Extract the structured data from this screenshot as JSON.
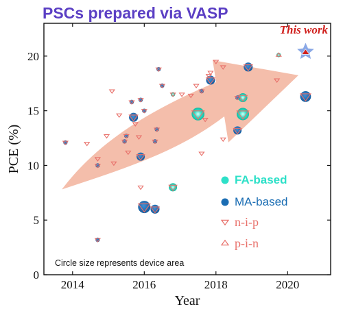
{
  "chart_data": {
    "type": "scatter",
    "title": "PSCs prepared via VASP",
    "xlabel": "Year",
    "ylabel": "PCE (%)",
    "xlim": [
      2013.2,
      2021.2
    ],
    "ylim": [
      0,
      23
    ],
    "x_ticks": [
      2014,
      2016,
      2018,
      2020
    ],
    "y_ticks": [
      0,
      5,
      10,
      15,
      20
    ],
    "grid": false,
    "legend": {
      "placement": "bottom-right",
      "entries": [
        {
          "label": "FA-based",
          "color": "#2de0c8"
        },
        {
          "label": "MA-based",
          "color": "#1a6db3"
        },
        {
          "label": "n-i-p",
          "color": "#e8706a"
        },
        {
          "label": "p-i-n",
          "color": "#e8706a"
        }
      ]
    },
    "annotation_note": "Circle size represents device area",
    "callout": {
      "label": "This work",
      "x": 2020.5,
      "y": 20.4
    },
    "trend_arrow": {
      "from": [
        2013.7,
        7.8
      ],
      "to": [
        2020.3,
        21.5
      ],
      "color": "#f2b39c"
    },
    "colors": {
      "fa": "#2de0c8",
      "ma": "#1a6db3",
      "marker_outline": "#e8706a",
      "star": "#8aa8e6",
      "this_work": "#d0201d"
    },
    "points": [
      {
        "x": 2013.8,
        "y": 12.1,
        "comp": "MA",
        "arch": "nip",
        "size": 1
      },
      {
        "x": 2014.4,
        "y": 12.0,
        "comp": "none",
        "arch": "nip",
        "size": 1
      },
      {
        "x": 2014.7,
        "y": 10.6,
        "comp": "none",
        "arch": "nip",
        "size": 1
      },
      {
        "x": 2014.7,
        "y": 10.0,
        "comp": "MA",
        "arch": "nip",
        "size": 1
      },
      {
        "x": 2014.7,
        "y": 3.2,
        "comp": "MA",
        "arch": "nip",
        "size": 1
      },
      {
        "x": 2014.95,
        "y": 12.7,
        "comp": "none",
        "arch": "nip",
        "size": 1
      },
      {
        "x": 2015.1,
        "y": 16.8,
        "comp": "none",
        "arch": "nip",
        "size": 1
      },
      {
        "x": 2015.15,
        "y": 10.2,
        "comp": "none",
        "arch": "nip",
        "size": 1
      },
      {
        "x": 2015.3,
        "y": 14.6,
        "comp": "none",
        "arch": "nip",
        "size": 1
      },
      {
        "x": 2015.45,
        "y": 12.2,
        "comp": "MA",
        "arch": "nip",
        "size": 1
      },
      {
        "x": 2015.5,
        "y": 12.7,
        "comp": "MA",
        "arch": "nip",
        "size": 1
      },
      {
        "x": 2015.55,
        "y": 11.2,
        "comp": "none",
        "arch": "nip",
        "size": 1
      },
      {
        "x": 2015.65,
        "y": 15.8,
        "comp": "MA",
        "arch": "nip",
        "size": 1
      },
      {
        "x": 2015.7,
        "y": 14.4,
        "comp": "MA",
        "arch": "nip",
        "size": 2.5
      },
      {
        "x": 2015.75,
        "y": 13.8,
        "comp": "none",
        "arch": "nip",
        "size": 1
      },
      {
        "x": 2015.85,
        "y": 12.6,
        "comp": "none",
        "arch": "nip",
        "size": 1
      },
      {
        "x": 2015.9,
        "y": 16.0,
        "comp": "MA",
        "arch": "nip",
        "size": 1
      },
      {
        "x": 2015.9,
        "y": 8.0,
        "comp": "none",
        "arch": "nip",
        "size": 1
      },
      {
        "x": 2015.9,
        "y": 10.8,
        "comp": "MA",
        "arch": "nip",
        "size": 2
      },
      {
        "x": 2016.0,
        "y": 15.0,
        "comp": "MA",
        "arch": "nip",
        "size": 1
      },
      {
        "x": 2016.0,
        "y": 6.2,
        "comp": "MA",
        "arch": "nip",
        "size": 5.5
      },
      {
        "x": 2016.3,
        "y": 6.0,
        "comp": "MA",
        "arch": "nip",
        "size": 2.5
      },
      {
        "x": 2016.3,
        "y": 12.2,
        "comp": "MA",
        "arch": "nip",
        "size": 1
      },
      {
        "x": 2016.35,
        "y": 13.3,
        "comp": "MA",
        "arch": "nip",
        "size": 1
      },
      {
        "x": 2016.4,
        "y": 18.8,
        "comp": "MA",
        "arch": "nip",
        "size": 1
      },
      {
        "x": 2016.5,
        "y": 17.3,
        "comp": "MA",
        "arch": "nip",
        "size": 1
      },
      {
        "x": 2016.8,
        "y": 16.5,
        "comp": "FA",
        "arch": "nip",
        "size": 1
      },
      {
        "x": 2016.8,
        "y": 8.0,
        "comp": "FA",
        "arch": "nip",
        "size": 2
      },
      {
        "x": 2017.05,
        "y": 16.5,
        "comp": "none",
        "arch": "nip",
        "size": 1
      },
      {
        "x": 2017.3,
        "y": 16.4,
        "comp": "none",
        "arch": "nip",
        "size": 1
      },
      {
        "x": 2017.45,
        "y": 17.3,
        "comp": "none",
        "arch": "nip",
        "size": 1
      },
      {
        "x": 2017.5,
        "y": 14.7,
        "comp": "FA",
        "arch": "nip",
        "size": 6
      },
      {
        "x": 2017.6,
        "y": 16.8,
        "comp": "MA",
        "arch": "nip",
        "size": 1
      },
      {
        "x": 2017.6,
        "y": 11.1,
        "comp": "none",
        "arch": "nip",
        "size": 1
      },
      {
        "x": 2017.7,
        "y": 14.2,
        "comp": "none",
        "arch": "nip",
        "size": 1
      },
      {
        "x": 2017.8,
        "y": 18.2,
        "comp": "none",
        "arch": "nip",
        "size": 1
      },
      {
        "x": 2017.85,
        "y": 17.8,
        "comp": "MA",
        "arch": "nip",
        "size": 2.5
      },
      {
        "x": 2017.85,
        "y": 18.5,
        "comp": "none",
        "arch": "nip",
        "size": 1
      },
      {
        "x": 2018.0,
        "y": 19.5,
        "comp": "none",
        "arch": "nip",
        "size": 1
      },
      {
        "x": 2018.2,
        "y": 19.0,
        "comp": "none",
        "arch": "nip",
        "size": 1
      },
      {
        "x": 2018.2,
        "y": 12.4,
        "comp": "none",
        "arch": "nip",
        "size": 1
      },
      {
        "x": 2018.6,
        "y": 16.2,
        "comp": "MA",
        "arch": "nip",
        "size": 1
      },
      {
        "x": 2018.6,
        "y": 13.2,
        "comp": "MA",
        "arch": "nip",
        "size": 2
      },
      {
        "x": 2018.75,
        "y": 16.2,
        "comp": "FA",
        "arch": "nip",
        "size": 2.5
      },
      {
        "x": 2018.75,
        "y": 14.7,
        "comp": "FA",
        "arch": "nip",
        "size": 5.5
      },
      {
        "x": 2018.9,
        "y": 19.0,
        "comp": "MA",
        "arch": "nip",
        "size": 2.5
      },
      {
        "x": 2019.7,
        "y": 17.8,
        "comp": "none",
        "arch": "nip",
        "size": 1
      },
      {
        "x": 2019.75,
        "y": 20.1,
        "comp": "FA",
        "arch": "pin",
        "size": 1
      },
      {
        "x": 2020.5,
        "y": 16.3,
        "comp": "MA",
        "arch": "nip",
        "size": 4
      }
    ]
  }
}
